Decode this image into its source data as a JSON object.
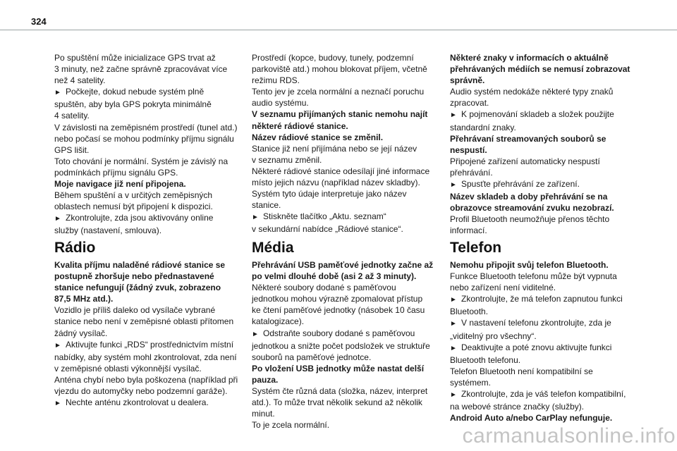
{
  "page_number": "324",
  "watermark": "carmanualsonline.info",
  "bullet_icon": "right-pointing-triangle",
  "columns": [
    {
      "top": [
        {
          "style": "normal",
          "lines": [
            "Po spuštění může inicializace GPS trvat až",
            "3 minuty, než začne správně zpracovávat více",
            "než 4 satelity."
          ]
        },
        {
          "style": "bullet",
          "lines": [
            "Počkejte, dokud nebude systém plně",
            "spuštěn, aby byla GPS pokryta minimálně",
            "4 satelity."
          ]
        },
        {
          "style": "normal",
          "lines": [
            "V závislosti na zeměpisném prostředí (tunel atd.)",
            "nebo počasí se mohou podmínky příjmu signálu",
            "GPS lišit.",
            "Toto chování je normální. Systém je závislý na",
            "podmínkách příjmu signálu GPS."
          ]
        },
        {
          "style": "bold",
          "lines": [
            "Moje navigace již není připojena."
          ]
        },
        {
          "style": "normal",
          "lines": [
            "Během spuštění a v určitých zeměpisných",
            "oblastech nemusí být připojení k dispozici."
          ]
        },
        {
          "style": "bullet",
          "lines": [
            "Zkontrolujte, zda jsou aktivovány online",
            "služby (nastavení, smlouva)."
          ]
        }
      ],
      "heading": "Rádio",
      "bottom": [
        {
          "style": "bold",
          "lines": [
            "Kvalita příjmu naladěné rádiové stanice se",
            "postupně zhoršuje nebo přednastavené",
            "stanice nefungují (žádný zvuk, zobrazeno",
            "87,5 MHz atd.)."
          ]
        },
        {
          "style": "normal",
          "lines": [
            "Vozidlo je příliš daleko od vysílače vybrané",
            "stanice nebo není v zeměpisné oblasti přítomen",
            "žádný vysílač."
          ]
        },
        {
          "style": "bullet",
          "lines": [
            "Aktivujte funkci „RDS“ prostřednictvím místní",
            "nabídky, aby systém mohl zkontrolovat, zda není",
            "v zeměpisné oblasti výkonnější vysílač."
          ]
        },
        {
          "style": "normal",
          "lines": [
            "Anténa chybí nebo byla poškozena (například při",
            "vjezdu do automyčky nebo podzemní garáže)."
          ]
        },
        {
          "style": "bullet",
          "lines": [
            "Nechte anténu zkontrolovat u dealera."
          ]
        }
      ]
    },
    {
      "top": [
        {
          "style": "normal",
          "lines": [
            "Prostředí (kopce, budovy, tunely, podzemní",
            "parkoviště atd.) mohou blokovat příjem, včetně",
            "režimu RDS.",
            "Tento jev je zcela normální a neznačí poruchu",
            "audio systému."
          ]
        },
        {
          "style": "bold",
          "lines": [
            "V seznamu přijímaných stanic nemohu najít",
            "některé rádiové stanice.",
            "Název rádiové stanice se změnil."
          ]
        },
        {
          "style": "normal",
          "lines": [
            "Stanice již není přijímána nebo se její název",
            "v seznamu změnil.",
            "Některé rádiové stanice odesílají jiné informace",
            "místo jejich názvu (například název skladby).",
            "Systém tyto údaje interpretuje jako název",
            "stanice."
          ]
        },
        {
          "style": "bullet",
          "lines": [
            "Stiskněte tlačítko „Aktu. seznam“",
            "v sekundární nabídce „Rádiové stanice“."
          ]
        }
      ],
      "heading": "Média",
      "bottom": [
        {
          "style": "bold",
          "lines": [
            "Přehrávání USB paměťové jednotky začne až",
            "po velmi dlouhé době (asi 2 až 3 minuty)."
          ]
        },
        {
          "style": "normal",
          "lines": [
            "Některé soubory dodané s paměťovou",
            "jednotkou mohou výrazně zpomalovat přístup",
            "ke čtení paměťové jednotky (násobek 10 času",
            "katalogizace)."
          ]
        },
        {
          "style": "bullet",
          "lines": [
            "Odstraňte soubory dodané s paměťovou",
            "jednotkou a snižte počet podsložek ve struktuře",
            "souborů na paměťové jednotce."
          ]
        },
        {
          "style": "bold",
          "lines": [
            "Po vložení USB jednotky může nastat delší",
            "pauza."
          ]
        },
        {
          "style": "normal",
          "lines": [
            "Systém čte různá data (složka, název, interpret",
            "atd.). To může trvat několik sekund až několik",
            "minut.",
            "To je zcela normální."
          ]
        }
      ]
    },
    {
      "top": [
        {
          "style": "bold",
          "lines": [
            "Některé znaky v informacích o aktuálně",
            "přehrávaných médiích se nemusí zobrazovat",
            "správně."
          ]
        },
        {
          "style": "normal",
          "lines": [
            "Audio systém nedokáže některé typy znaků",
            "zpracovat."
          ]
        },
        {
          "style": "bullet",
          "lines": [
            "K pojmenování skladeb a složek použijte",
            "standardní znaky."
          ]
        },
        {
          "style": "bold",
          "lines": [
            "Přehrávaní streamovaných souborů se",
            "nespustí."
          ]
        },
        {
          "style": "normal",
          "lines": [
            "Připojené zařízení automaticky nespustí",
            "přehrávání."
          ]
        },
        {
          "style": "bullet",
          "lines": [
            "Spusťte přehrávání ze zařízení."
          ]
        },
        {
          "style": "bold",
          "lines": [
            "Název skladeb a doby přehrávání se na",
            "obrazovce streamování zvuku nezobrazí."
          ]
        },
        {
          "style": "normal",
          "lines": [
            "Profil Bluetooth neumožňuje přenos těchto",
            "informací."
          ]
        }
      ],
      "heading": "Telefon",
      "bottom": [
        {
          "style": "bold",
          "lines": [
            "Nemohu připojit svůj telefon Bluetooth."
          ]
        },
        {
          "style": "normal",
          "lines": [
            "Funkce Bluetooth telefonu může být vypnuta",
            "nebo zařízení není viditelné."
          ]
        },
        {
          "style": "bullet",
          "lines": [
            "Zkontrolujte, že má telefon zapnutou funkci",
            "Bluetooth."
          ]
        },
        {
          "style": "bullet",
          "lines": [
            "V nastavení telefonu zkontrolujte, zda je",
            "„viditelný pro všechny“."
          ]
        },
        {
          "style": "bullet",
          "lines": [
            "Deaktivujte a poté znovu aktivujte funkci",
            "Bluetooth telefonu."
          ]
        },
        {
          "style": "normal",
          "lines": [
            "Telefon Bluetooth není kompatibilní se",
            "systémem."
          ]
        },
        {
          "style": "bullet",
          "lines": [
            "Zkontrolujte, zda je váš telefon kompatibilní,",
            "na webové stránce značky (služby)."
          ]
        },
        {
          "style": "bold",
          "lines": [
            "Android Auto a/nebo CarPlay nefunguje."
          ]
        }
      ]
    }
  ]
}
